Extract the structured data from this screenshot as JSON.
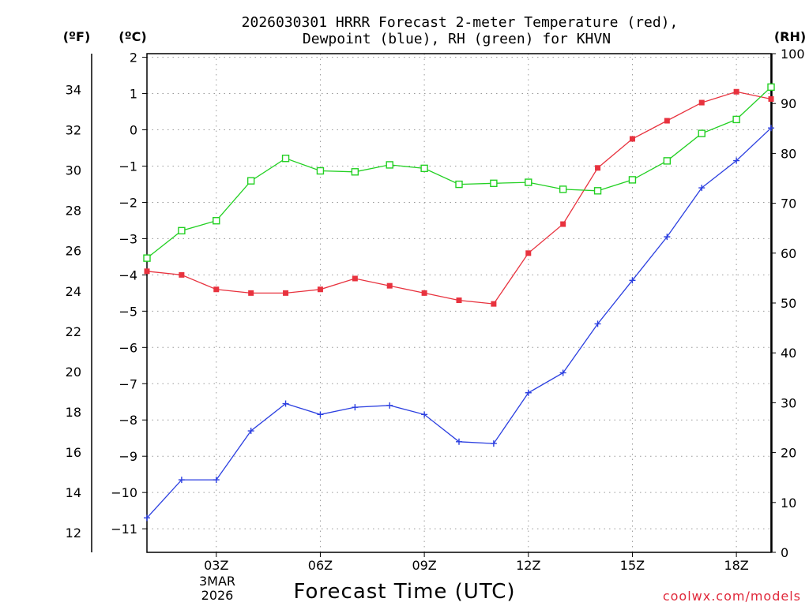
{
  "chart_data": {
    "type": "line",
    "title_line1": "2026030301 HRRR Forecast 2-meter Temperature (red),",
    "title_line2": "Dewpoint (blue), RH (green) for KHVN",
    "unit_f": "(ºF)",
    "unit_c": "(ºC)",
    "unit_rh": "(RH)",
    "xlabel": "Forecast Time (UTC)",
    "date_day": "3MAR",
    "date_year": "2026",
    "credit": "coolwx.com/models",
    "x_hours": [
      1,
      2,
      3,
      4,
      5,
      6,
      7,
      8,
      9,
      10,
      11,
      12,
      13,
      14,
      15,
      16,
      17,
      18,
      19
    ],
    "xlim": [
      1,
      19
    ],
    "x_ticks": [
      {
        "hour": 3,
        "label": "03Z"
      },
      {
        "hour": 6,
        "label": "06Z"
      },
      {
        "hour": 9,
        "label": "09Z"
      },
      {
        "hour": 12,
        "label": "12Z"
      },
      {
        "hour": 15,
        "label": "15Z"
      },
      {
        "hour": 18,
        "label": "18Z"
      }
    ],
    "ylim_c": [
      -11.65,
      2.1
    ],
    "y_c_ticks": [
      2,
      1,
      0,
      -1,
      -2,
      -3,
      -4,
      -5,
      -6,
      -7,
      -8,
      -9,
      -10,
      -11
    ],
    "y_c_labels": [
      "2",
      "1",
      "0",
      "−1",
      "−2",
      "−3",
      "−4",
      "−5",
      "−6",
      "−7",
      "−8",
      "−9",
      "−10",
      "−11"
    ],
    "y_f_ticks": [
      34,
      32,
      30,
      28,
      26,
      24,
      22,
      20,
      18,
      16,
      14,
      12
    ],
    "y_rh_ticks": [
      100,
      90,
      80,
      70,
      60,
      50,
      40,
      30,
      20,
      10,
      0
    ],
    "ylim_rh": [
      0,
      100
    ],
    "series": [
      {
        "name": "Temperature",
        "color": "#e8323e",
        "values": [
          -3.9,
          -4.0,
          -4.4,
          -4.5,
          -4.5,
          -4.4,
          -4.1,
          -4.3,
          -4.5,
          -4.7,
          -4.8,
          -3.4,
          -2.6,
          -1.05,
          -0.25,
          0.25,
          0.75,
          1.05,
          0.85
        ]
      },
      {
        "name": "Dewpoint",
        "color": "#2b3fe0",
        "values": [
          -10.7,
          -9.65,
          -9.65,
          -8.3,
          -7.55,
          -7.85,
          -7.65,
          -7.6,
          -7.85,
          -8.6,
          -8.65,
          -7.25,
          -6.7,
          -5.35,
          -4.15,
          -2.95,
          -1.6,
          -0.85,
          0.05
        ]
      },
      {
        "name": "RH",
        "color": "#22d022",
        "values": [
          59,
          64.5,
          66.5,
          74.5,
          79,
          76.5,
          76.3,
          77.7,
          77,
          73.8,
          74,
          74.2,
          72.8,
          72.5,
          74.7,
          78.5,
          84,
          86.8,
          93.3
        ]
      }
    ]
  }
}
